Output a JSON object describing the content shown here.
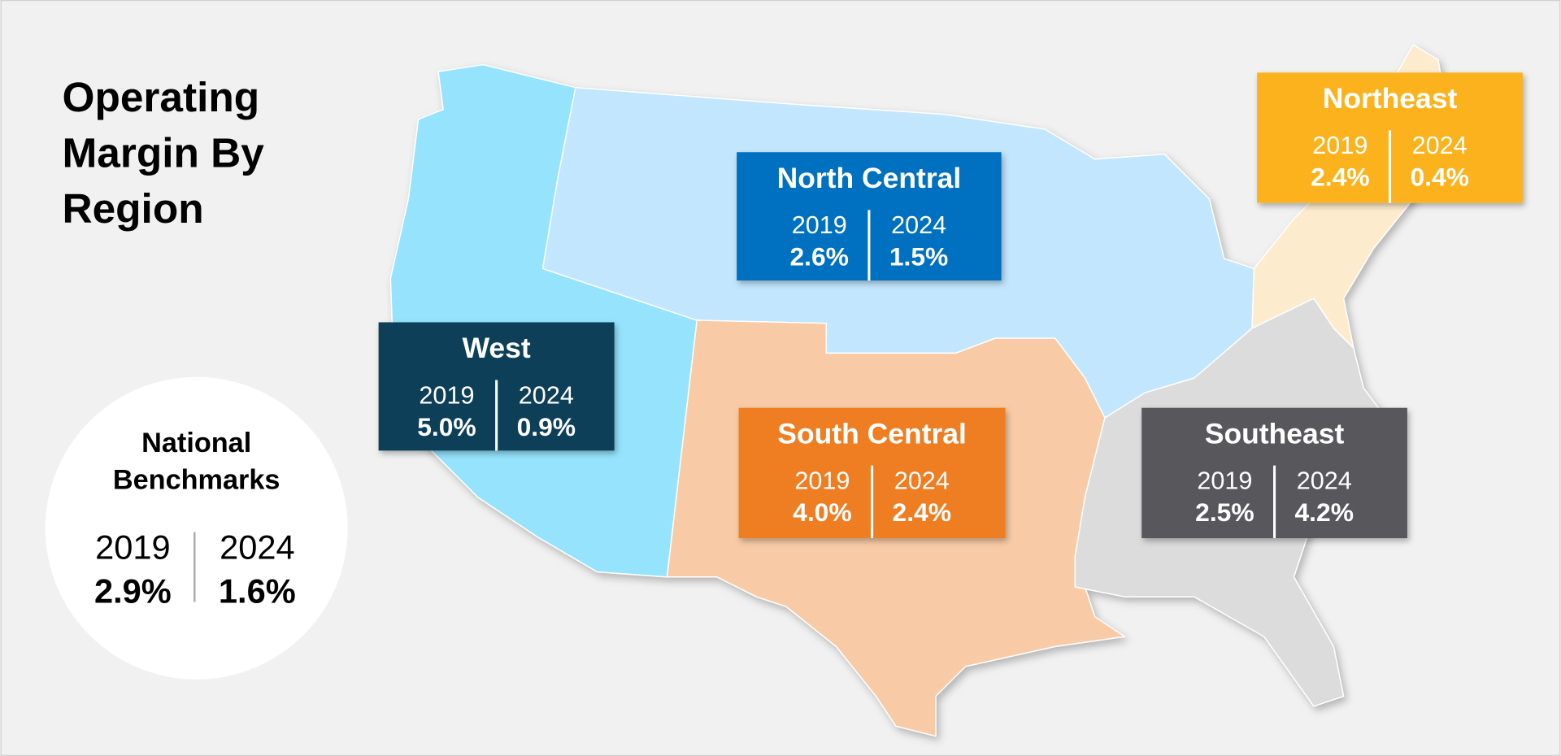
{
  "title": [
    "Operating",
    "Margin By",
    "Region"
  ],
  "national_benchmarks": {
    "title": [
      "National",
      "Benchmarks"
    ],
    "years": [
      "2019",
      "2024"
    ],
    "values": [
      "2.9%",
      "1.6%"
    ]
  },
  "regions": [
    {
      "name": "North Central",
      "color": "#0070c0",
      "years": [
        "2019",
        "2024"
      ],
      "values": [
        "2.6%",
        "1.5%"
      ]
    },
    {
      "name": "Northeast",
      "color": "#fbb21f",
      "years": [
        "2019",
        "2024"
      ],
      "values": [
        "2.4%",
        "0.4%"
      ]
    },
    {
      "name": "West",
      "color": "#0b4058",
      "years": [
        "2019",
        "2024"
      ],
      "values": [
        "5.0%",
        "0.9%"
      ]
    },
    {
      "name": "South Central",
      "color": "#ef7d22",
      "years": [
        "2019",
        "2024"
      ],
      "values": [
        "4.0%",
        "2.4%"
      ]
    },
    {
      "name": "Southeast",
      "color": "#58585b",
      "years": [
        "2019",
        "2024"
      ],
      "values": [
        "2.5%",
        "4.2%"
      ]
    }
  ]
}
